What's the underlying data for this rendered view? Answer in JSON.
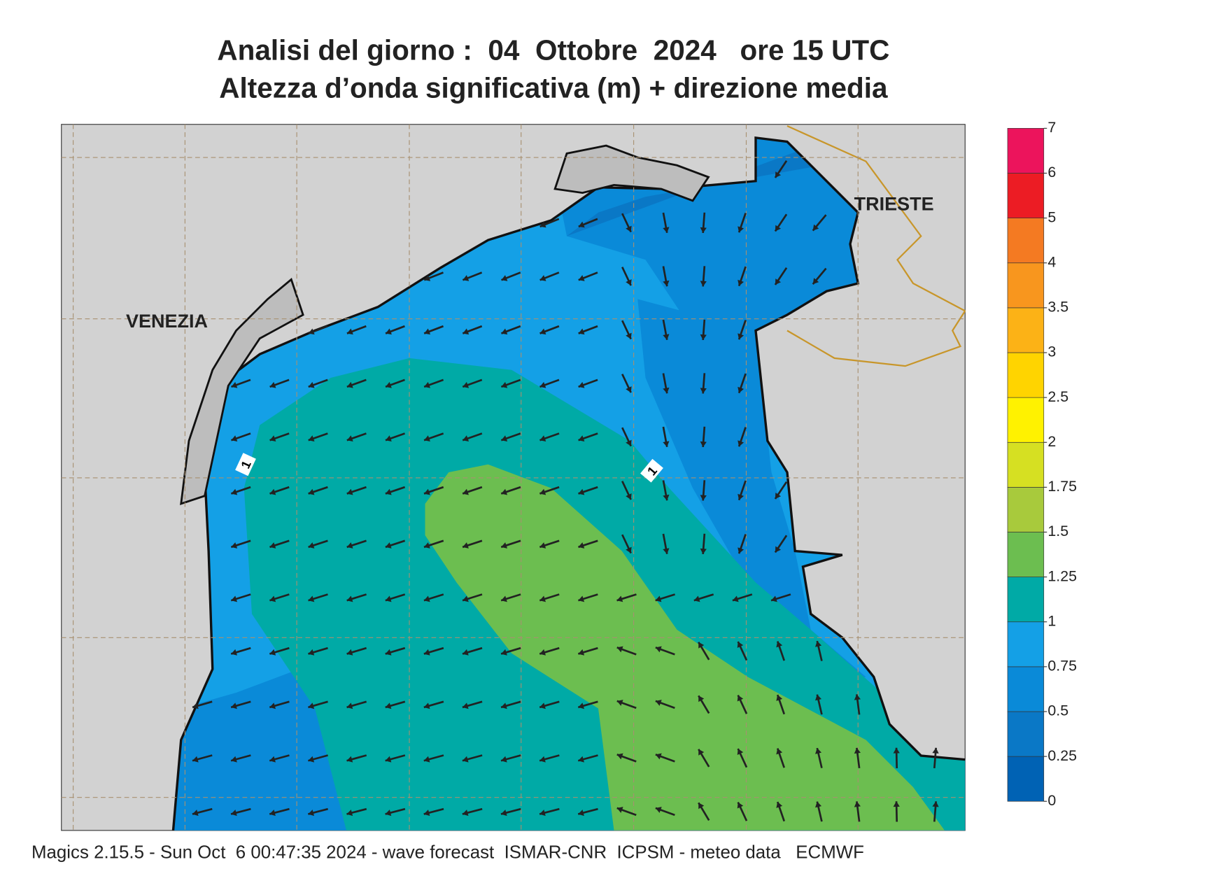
{
  "title": [
    "Analisi del giorno :  04  Ottobre  2024   ore 15 UTC",
    "Altezza d’onda significativa (m) + direzione media"
  ],
  "places": [
    "VENEZIA",
    "TRIESTE"
  ],
  "contour_labels": [
    "1",
    "1"
  ],
  "legend": {
    "levels": [
      0,
      0.25,
      0.5,
      0.75,
      1,
      1.25,
      1.5,
      1.75,
      2,
      2.5,
      3,
      3.5,
      4,
      5,
      6,
      7
    ],
    "colors": [
      "#0062b4",
      "#0a78c6",
      "#0a8ad8",
      "#14a0e6",
      "#00aaa6",
      "#6cbe50",
      "#a8ca3c",
      "#d6e022",
      "#fff200",
      "#ffd400",
      "#fcb216",
      "#f8961e",
      "#f47a22",
      "#ec1c24",
      "#ec145c"
    ]
  },
  "footer": "Magics 2.15.5 - Sun Oct  6 00:47:35 2024 - wave forecast  ISMAR-CNR  ICPSM - meteo data   ECMWF"
}
